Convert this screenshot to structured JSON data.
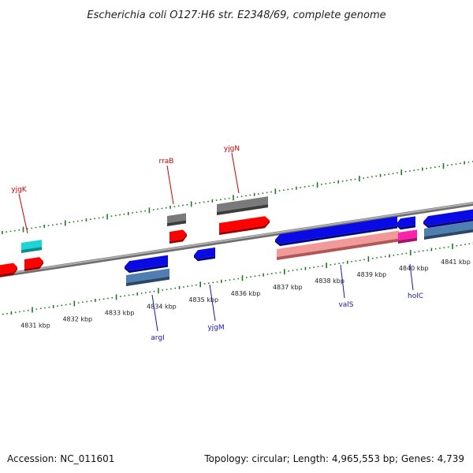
{
  "title": "Escherichia coli O127:H6 str. E2348/69, complete genome",
  "footer": {
    "accession": "Accession: NC_011601",
    "summary": "Topology: circular; Length: 4,965,553 bp; Genes: 4,739"
  },
  "ticks": [
    "4831 kbp",
    "4832 kbp",
    "4833 kbp",
    "4834 kbp",
    "4835 kbp",
    "4836 kbp",
    "4837 kbp",
    "4838 kbp",
    "4839 kbp",
    "4840 kbp",
    "4841 kbp"
  ],
  "gene_labels": {
    "yjgK": "yjgK",
    "rraB": "rraB",
    "yjgN": "yjgN",
    "argI": "argI",
    "yjgM": "yjgM",
    "valS": "valS",
    "holC": "holC"
  },
  "colors": {
    "backbone": "#8c8c8c",
    "tick": "#1f7a1f",
    "forward_label": "#cc0000",
    "reverse_label": "#1515b0",
    "red": "#ff0000",
    "grey": "#707070",
    "cyan": "#1ad6d6",
    "blue": "#0a0ae6",
    "steel": "#4f7fb0",
    "pink": "#f29a9a",
    "magenta": "#ff22aa"
  }
}
